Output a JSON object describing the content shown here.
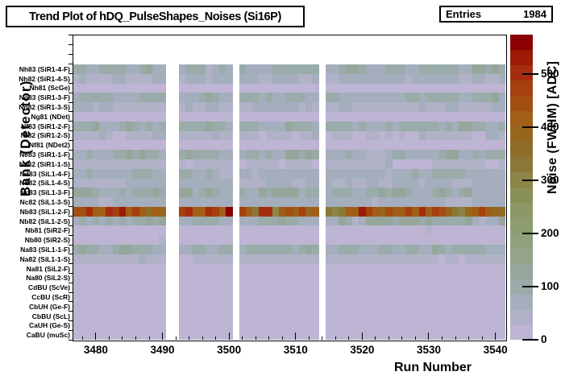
{
  "title": "Trend Plot of hDQ_PulseShapes_Noises (Si16P)",
  "stats": {
    "entries_label": "Entries",
    "entries_value": "1984"
  },
  "x_axis": {
    "title": "Run Number"
  },
  "y_axis": {
    "title": "Bank (Detector)"
  },
  "colorbar": {
    "title": "Noise (FWHM) [ADC]"
  },
  "chart_data": {
    "type": "heatmap",
    "title": "Trend Plot of hDQ_PulseShapes_Noises (Si16P)",
    "entries": 1984,
    "xlabel": "Run Number",
    "ylabel": "Bank (Detector)",
    "zlabel": "Noise (FWHM) [ADC]",
    "x_range": [
      3476.5,
      3541.5
    ],
    "runs_start": 3477,
    "runs_end": 3541,
    "missing_runs": [
      3491,
      3492,
      3501,
      3514
    ],
    "x_ticks": [
      3480,
      3490,
      3500,
      3510,
      3520,
      3530,
      3540
    ],
    "z_range": [
      0,
      575
    ],
    "z_ticks": [
      0,
      100,
      200,
      300,
      400,
      500
    ],
    "empty_top_bins": 3,
    "palette": [
      "#bdb5d3",
      "#b1b2c8",
      "#a4aebd",
      "#99acaa",
      "#96a69b",
      "#93a48b",
      "#90a07e",
      "#8e9c72",
      "#8c9866",
      "#8a9157",
      "#8c8448",
      "#8a7838",
      "#8f6d2b",
      "#97661e",
      "#a05e17",
      "#a34e12",
      "#a6400f",
      "#a52d0d",
      "#9c1a06",
      "#8b0000"
    ],
    "rows": [
      {
        "label": "Nh83 (SiR1-4-F)",
        "base": 95,
        "spread": 40
      },
      {
        "label": "Nh82 (SiR1-4-S)",
        "base": 60,
        "spread": 25
      },
      {
        "label": "Nh81 (ScGe)",
        "base": 15,
        "spread": 8
      },
      {
        "label": "Ng83 (SiR1-3-F)",
        "base": 90,
        "spread": 40
      },
      {
        "label": "Ng82 (SiR1-3-S)",
        "base": 55,
        "spread": 20
      },
      {
        "label": "Ng81 (NDet)",
        "base": 15,
        "spread": 8
      },
      {
        "label": "Nf83 (SiR1-2-F)",
        "base": 100,
        "spread": 45
      },
      {
        "label": "Nf82 (SiR1-2-S)",
        "base": 40,
        "spread": 30
      },
      {
        "label": "Nf81 (NDet2)",
        "base": 15,
        "spread": 8
      },
      {
        "label": "Ne83 (SiR1-1-F)",
        "base": 95,
        "spread": 45
      },
      {
        "label": "Ne82 (SiR1-1-S)",
        "base": 35,
        "spread": 25
      },
      {
        "label": "Nd83 (SiL1-4-F)",
        "base": 75,
        "spread": 30
      },
      {
        "label": "Nd82 (SiL1-4-S)",
        "base": 60,
        "spread": 20
      },
      {
        "label": "Nc83 (SiL1-3-F)",
        "base": 100,
        "spread": 45
      },
      {
        "label": "Nc82 (SiL1-3-S)",
        "base": 65,
        "spread": 20
      },
      {
        "label": "Nb83 (SiL1-2-F)",
        "special": "red"
      },
      {
        "label": "Nb82 (SiL1-2-S)",
        "base": 90,
        "spread": 45
      },
      {
        "label": "Nb81 (SiR2-F)",
        "base": 20,
        "spread": 10
      },
      {
        "label": "Nb80 (SiR2-S)",
        "base": 20,
        "spread": 10
      },
      {
        "label": "Na83 (SiL1-1-F)",
        "base": 90,
        "spread": 40
      },
      {
        "label": "Na82 (SiL1-1-S)",
        "base": 40,
        "spread": 25
      },
      {
        "label": "Na81 (SiL2-F)",
        "base": 15,
        "spread": 5
      },
      {
        "label": "Na80 (SiL2-S)",
        "base": 15,
        "spread": 5
      },
      {
        "label": "CdBU (ScVe)",
        "base": 15,
        "spread": 5
      },
      {
        "label": "CcBU (ScR)",
        "base": 15,
        "spread": 5
      },
      {
        "label": "CbUH (Ge-F)",
        "base": 15,
        "spread": 5
      },
      {
        "label": "CbBU (ScL)",
        "base": 15,
        "spread": 5
      },
      {
        "label": "CaUH (Ge-S)",
        "base": 15,
        "spread": 5
      },
      {
        "label": "CaBU (muSc)",
        "base": 15,
        "spread": 5
      }
    ],
    "red_row_values": [
      445,
      445,
      505,
      415,
      415,
      505,
      475,
      530,
      415,
      475,
      415,
      355,
      415,
      385,
      null,
      null,
      475,
      505,
      415,
      415,
      505,
      475,
      415,
      560,
      null,
      475,
      415,
      330,
      505,
      505,
      300,
      415,
      445,
      415,
      475,
      385,
      415,
      null,
      330,
      300,
      330,
      415,
      415,
      530,
      475,
      415,
      385,
      445,
      415,
      415,
      475,
      415,
      505,
      415,
      475,
      445,
      385,
      330,
      300,
      385,
      415,
      475,
      415,
      385,
      355
    ]
  }
}
